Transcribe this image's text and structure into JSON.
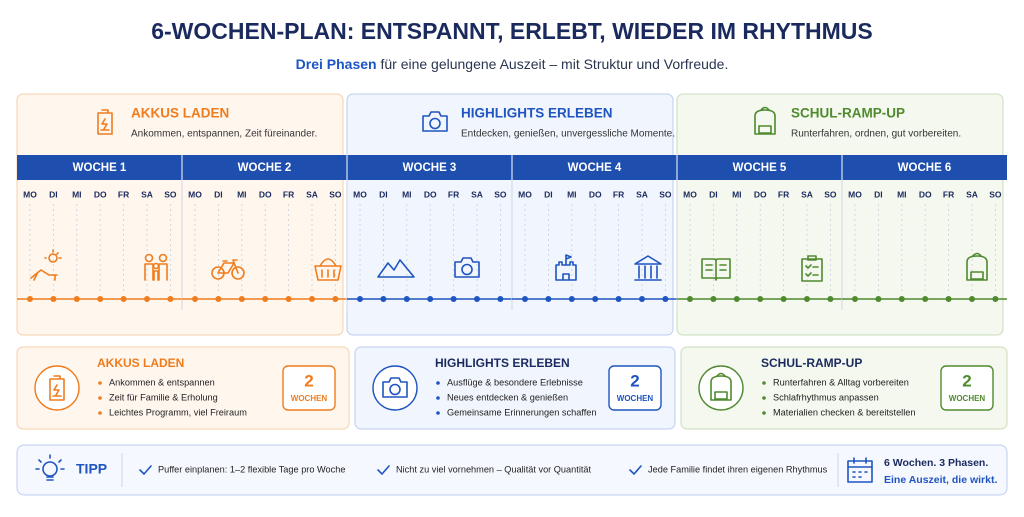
{
  "header": {
    "title": "6-WOCHEN-PLAN: ENTSPANNT, ERLEBT, WIEDER IM RHYTHMUS",
    "subtitle_highlight": "Drei Phasen",
    "subtitle": "für eine gelungene Auszeit – mit Struktur und Vorfreude."
  },
  "phases": [
    {
      "title": "AKKUS LADEN",
      "description": "Ankommen, entspannen, Zeit füreinander."
    },
    {
      "title": "HIGHLIGHTS ERLEBEN",
      "description": "Entdecken, genießen, unvergessliche Momente."
    },
    {
      "title": "SCHUL-RAMP-UP",
      "description": "Runterfahren, ordnen, gut vorbereiten."
    }
  ],
  "weeks": [
    "WOCHE 1",
    "WOCHE 2",
    "WOCHE 3",
    "WOCHE 4",
    "WOCHE 5",
    "WOCHE 6"
  ],
  "days": [
    "MO",
    "DI",
    "MI",
    "DO",
    "FR",
    "SA",
    "SO"
  ],
  "cards": [
    {
      "title": "AKKUS LADEN",
      "items": [
        "Ankommen & entspannen",
        "Zeit für Familie & Erholung",
        "Leichtes Programm, viel Freiraum"
      ],
      "count": 2,
      "unit": "WOCHEN"
    },
    {
      "title": "HIGHLIGHTS ERLEBEN",
      "items": [
        "Ausflüge & besondere Erlebnisse",
        "Neues entdecken & genießen",
        "Gemeinsame Erinnerungen schaffen"
      ],
      "count": 2,
      "unit": "WOCHEN"
    },
    {
      "title": "SCHUL-RAMP-UP",
      "items": [
        "Runterfahren & Alltag vorbereiten",
        "Schlafrhythmus anpassen",
        "Materialien checken & bereitstellen"
      ],
      "count": 2,
      "unit": "WOCHEN"
    }
  ],
  "tip": {
    "label": "TIPP",
    "items": [
      "Puffer einplanen: 1–2 flexible Tage pro Woche",
      "Nicht zu viel vornehmen – Qualität vor Quantität",
      "Jede Familie findet ihren eigenen Rhythmus"
    ],
    "summary_line1": "6 Wochen. 3 Phasen.",
    "summary_line2": "Eine Auszeit, die wirkt."
  }
}
